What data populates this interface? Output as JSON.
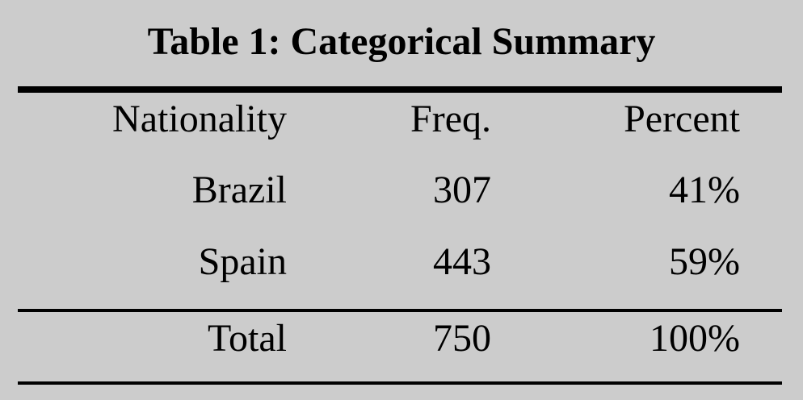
{
  "chart_data": {
    "type": "table",
    "title": "Table 1: Categorical Summary",
    "columns": [
      "Nationality",
      "Freq.",
      "Percent"
    ],
    "rows": [
      {
        "nationality": "Brazil",
        "freq": "307",
        "percent": "41%"
      },
      {
        "nationality": "Spain",
        "freq": "443",
        "percent": "59%"
      }
    ],
    "total": {
      "label": "Total",
      "freq": "750",
      "percent": "100%"
    }
  }
}
